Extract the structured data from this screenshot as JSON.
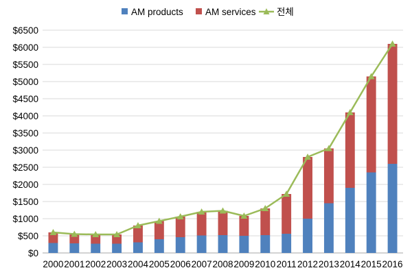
{
  "chart_data": {
    "type": "bar",
    "stacked": true,
    "categories": [
      "2000",
      "2001",
      "2002",
      "2003",
      "2004",
      "2005",
      "2006",
      "2007",
      "2008",
      "2009",
      "2010",
      "2011",
      "2012",
      "2013",
      "2014",
      "2015",
      "2016"
    ],
    "series": [
      {
        "name": "AM products",
        "kind": "bar",
        "color": "#4f81bd",
        "values": [
          290,
          280,
          270,
          270,
          310,
          400,
          460,
          510,
          520,
          500,
          520,
          560,
          1000,
          1450,
          1900,
          2350,
          2600
        ]
      },
      {
        "name": "AM services",
        "kind": "bar",
        "color": "#c0504d",
        "values": [
          310,
          270,
          270,
          270,
          490,
          530,
          600,
          690,
          710,
          580,
          780,
          1160,
          1800,
          1600,
          2200,
          2800,
          3500
        ]
      },
      {
        "name": "전체",
        "kind": "line",
        "color": "#9bbb59",
        "values": [
          600,
          550,
          540,
          540,
          800,
          930,
          1060,
          1200,
          1230,
          1080,
          1300,
          1720,
          2800,
          3050,
          4100,
          5150,
          6100
        ]
      }
    ],
    "ylim": [
      0,
      6500
    ],
    "y_ticks": [
      "$0",
      "$500",
      "$1000",
      "$1500",
      "$2000",
      "$2500",
      "$3000",
      "$3500",
      "$4000",
      "$4500",
      "$5000",
      "$5500",
      "$6000",
      "$6500"
    ],
    "grid": true,
    "legend_position": "top-center"
  }
}
